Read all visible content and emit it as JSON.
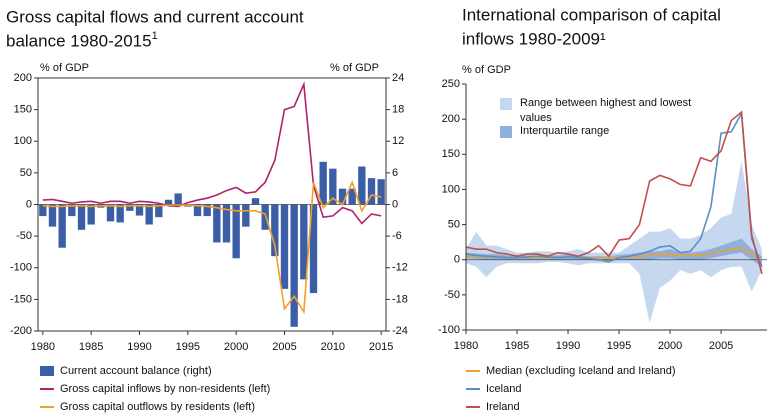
{
  "chart_data": [
    {
      "type": "combo",
      "title_lines": [
        "Gross capital flows and current account",
        "balance 1980-2015"
      ],
      "title_sup": "1",
      "ylabel": "% of GDP",
      "y2label": "% of GDP",
      "x": [
        1980,
        1981,
        1982,
        1983,
        1984,
        1985,
        1986,
        1987,
        1988,
        1989,
        1990,
        1991,
        1992,
        1993,
        1994,
        1995,
        1996,
        1997,
        1998,
        1999,
        2000,
        2001,
        2002,
        2003,
        2004,
        2005,
        2006,
        2007,
        2008,
        2009,
        2010,
        2011,
        2012,
        2013,
        2014,
        2015
      ],
      "xlim": [
        1979.5,
        2015.5
      ],
      "xticks": [
        1980,
        1985,
        1990,
        1995,
        2000,
        2005,
        2010,
        2015
      ],
      "ylim": [
        -200,
        200
      ],
      "yticks": [
        -200,
        -150,
        -100,
        -50,
        0,
        50,
        100,
        150,
        200
      ],
      "y2lim": [
        -24,
        24
      ],
      "y2ticks": [
        -24,
        -18,
        -12,
        -6,
        0,
        6,
        12,
        18,
        24
      ],
      "series": [
        {
          "name": "Current account balance (right)",
          "type": "bar",
          "axis": "y2",
          "color": "#3b5ea6",
          "values": [
            -2.2,
            -4.2,
            -8.2,
            -2.2,
            -4.8,
            -3.8,
            -0.6,
            -3.2,
            -3.4,
            -1.2,
            -2.1,
            -3.8,
            -2.4,
            0.9,
            2.1,
            -0.4,
            -2.2,
            -2.2,
            -7.2,
            -7.2,
            -10.2,
            -4.2,
            1.2,
            -4.8,
            -9.8,
            -16,
            -23.2,
            -14.2,
            -16.8,
            8.1,
            6.8,
            3,
            3,
            7.2,
            5,
            4.8
          ]
        },
        {
          "name": "Gross capital inflows by non-residents (left)",
          "type": "line",
          "color": "#b0236a",
          "values": [
            7,
            8,
            5,
            2,
            4,
            5,
            2,
            5,
            5,
            2,
            5,
            4,
            2,
            -2,
            -3,
            3,
            7,
            10,
            15,
            22,
            27,
            18,
            20,
            35,
            70,
            150,
            155,
            190,
            30,
            -20,
            -18,
            -5,
            -10,
            -30,
            -15,
            -18
          ]
        },
        {
          "name": "Gross capital outflows by residents (left)",
          "type": "line",
          "color": "#f2a02a",
          "values": [
            -2,
            -3,
            -3,
            -2,
            -2,
            -3,
            -2,
            -2,
            -3,
            -2,
            -2,
            -3,
            -2,
            -1,
            -1,
            -1,
            -2,
            -3,
            -5,
            -8,
            -10,
            -10,
            -10,
            -15,
            -65,
            -165,
            -145,
            -170,
            35,
            -5,
            10,
            0,
            35,
            -10,
            15,
            12
          ]
        }
      ]
    },
    {
      "type": "band_line",
      "title_lines": [
        "International comparison of capital",
        "inflows 1980-2009¹"
      ],
      "ylabel": "% of GDP",
      "x": [
        1980,
        1981,
        1982,
        1983,
        1984,
        1985,
        1986,
        1987,
        1988,
        1989,
        1990,
        1991,
        1992,
        1993,
        1994,
        1995,
        1996,
        1997,
        1998,
        1999,
        2000,
        2001,
        2002,
        2003,
        2004,
        2005,
        2006,
        2007,
        2008,
        2009
      ],
      "xlim": [
        1980,
        2009.5
      ],
      "xticks": [
        1980,
        1985,
        1990,
        1995,
        2000,
        2005
      ],
      "ylim": [
        -100,
        250
      ],
      "yticks": [
        -100,
        -50,
        0,
        50,
        100,
        150,
        200,
        250
      ],
      "series": [
        {
          "name": "Range between highest and lowest values",
          "type": "band",
          "color": "#c5d8ef",
          "high": [
            15,
            40,
            20,
            20,
            15,
            10,
            10,
            12,
            12,
            10,
            12,
            15,
            10,
            10,
            10,
            10,
            20,
            30,
            40,
            40,
            45,
            30,
            30,
            35,
            45,
            60,
            65,
            140,
            50,
            15
          ],
          "low": [
            -5,
            -10,
            -25,
            -10,
            -5,
            -5,
            -5,
            -5,
            -3,
            -3,
            -5,
            -8,
            -5,
            -5,
            -5,
            -5,
            -5,
            -20,
            -90,
            -40,
            -30,
            -15,
            -20,
            -15,
            -25,
            -15,
            -10,
            -10,
            -45,
            -15
          ]
        },
        {
          "name": "Interquartile range",
          "type": "band",
          "color": "#8fb0dc",
          "high": [
            10,
            9,
            8,
            8,
            6,
            5,
            6,
            6,
            6,
            6,
            7,
            6,
            5,
            5,
            5,
            7,
            8,
            10,
            12,
            12,
            15,
            10,
            10,
            12,
            15,
            20,
            25,
            30,
            15,
            5
          ],
          "low": [
            2,
            1,
            0,
            0,
            0,
            0,
            0,
            0,
            0,
            0,
            0,
            0,
            0,
            -2,
            -2,
            0,
            0,
            0,
            0,
            2,
            2,
            0,
            0,
            0,
            2,
            5,
            8,
            10,
            0,
            -10
          ]
        },
        {
          "name": "Median (excluding Iceland and Ireland)",
          "type": "line",
          "color": "#f0a030",
          "values": [
            5,
            5,
            4,
            4,
            3,
            3,
            3,
            3,
            3,
            3,
            4,
            3,
            3,
            2,
            2,
            3,
            4,
            5,
            6,
            7,
            8,
            6,
            6,
            7,
            9,
            12,
            15,
            17,
            8,
            -2
          ]
        },
        {
          "name": "Iceland",
          "type": "line",
          "color": "#5b8ec4",
          "values": [
            8,
            6,
            5,
            4,
            3,
            3,
            4,
            5,
            4,
            3,
            4,
            3,
            2,
            0,
            -3,
            3,
            5,
            8,
            12,
            18,
            20,
            10,
            12,
            30,
            75,
            180,
            182,
            208,
            30,
            -10
          ]
        },
        {
          "name": "Ireland",
          "type": "line",
          "color": "#c0504d",
          "values": [
            18,
            15,
            15,
            10,
            8,
            5,
            8,
            8,
            5,
            10,
            8,
            5,
            10,
            20,
            5,
            28,
            30,
            50,
            112,
            120,
            115,
            107,
            105,
            145,
            140,
            155,
            198,
            210,
            35,
            -20
          ]
        }
      ]
    }
  ]
}
